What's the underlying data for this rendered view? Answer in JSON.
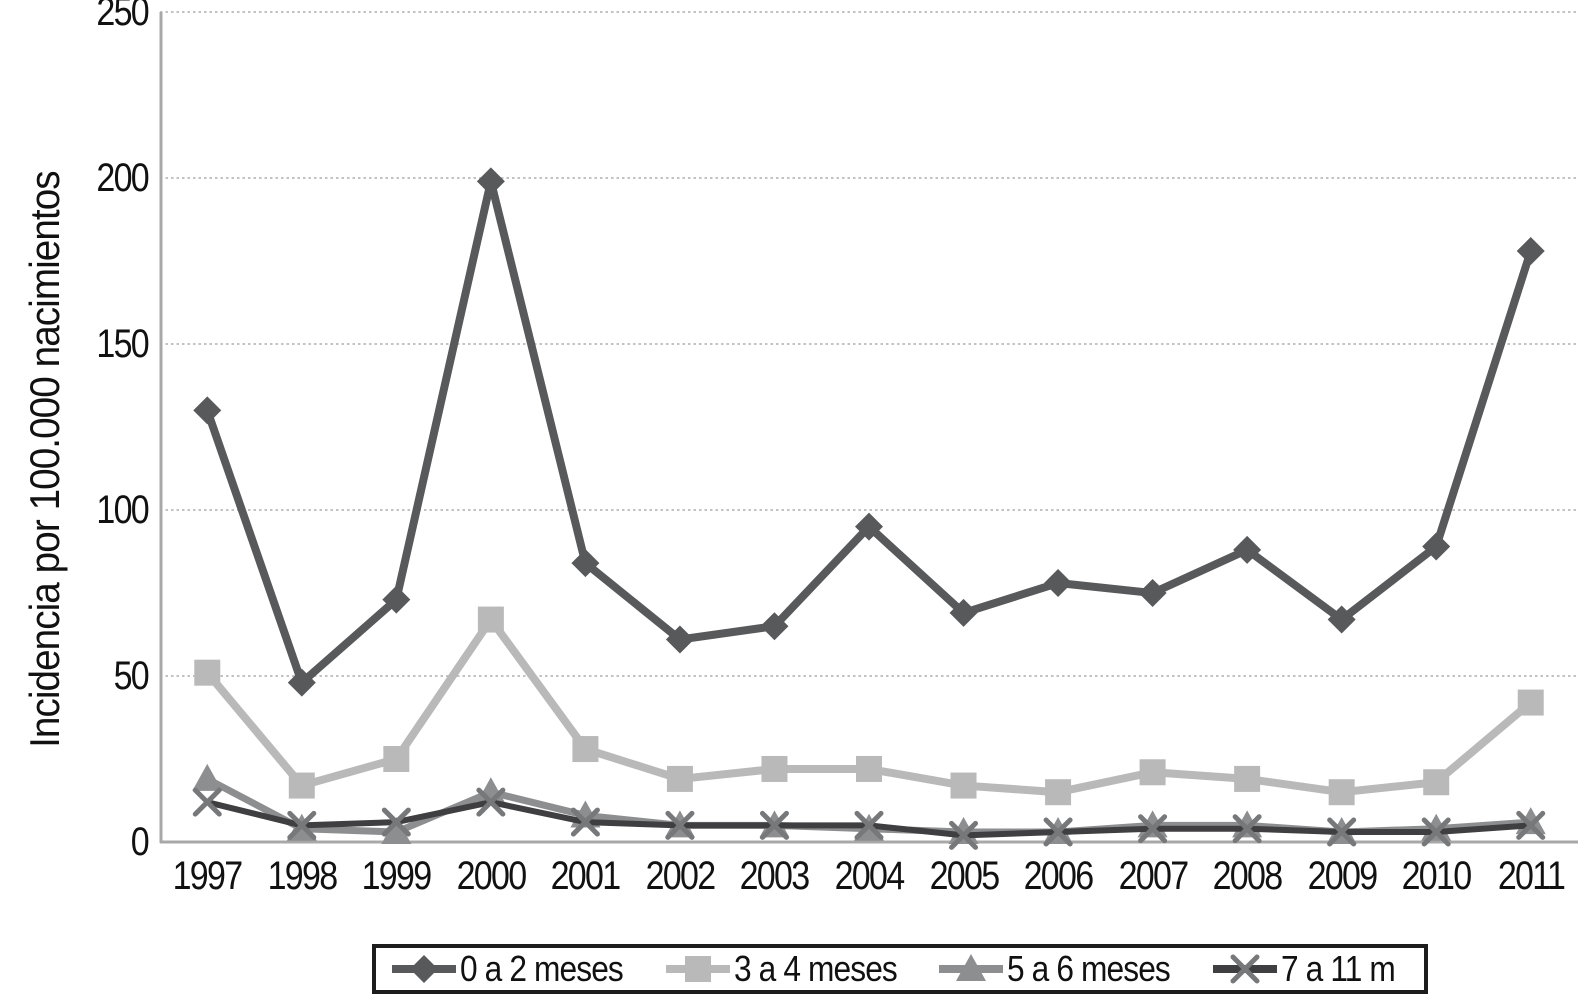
{
  "chart_data": {
    "type": "line",
    "title": "",
    "ylabel": "Incidencia por 100.000 nacimientos",
    "xlabel": "",
    "ylim": [
      0,
      250
    ],
    "y_ticks": [
      "0",
      "50",
      "100",
      "150",
      "200",
      "250"
    ],
    "grid": "horizontal dotted gridlines every 50",
    "legend_position": "bottom",
    "categories": [
      "1997",
      "1998",
      "1999",
      "2000",
      "2001",
      "2002",
      "2003",
      "2004",
      "2005",
      "2006",
      "2007",
      "2008",
      "2009",
      "2010",
      "2011"
    ],
    "series": [
      {
        "name": "0 a 2 meses",
        "marker": "diamond",
        "color": "#58595b",
        "line_width": 8,
        "values": [
          130,
          48,
          73,
          199,
          84,
          61,
          65,
          95,
          69,
          78,
          75,
          88,
          67,
          89,
          178
        ]
      },
      {
        "name": "3 a 4 meses",
        "marker": "square",
        "color": "#b9b9ba",
        "line_width": 8,
        "values": [
          51,
          17,
          25,
          67,
          28,
          19,
          22,
          22,
          17,
          15,
          21,
          19,
          15,
          18,
          42
        ]
      },
      {
        "name": "5 a 6 meses",
        "marker": "triangle",
        "color": "#8d8e90",
        "line_width": 7,
        "values": [
          19,
          4,
          3,
          15,
          8,
          5,
          5,
          4,
          3,
          3,
          5,
          5,
          3,
          4,
          6
        ]
      },
      {
        "name": "7 a 11 m",
        "marker": "x",
        "color": "#3f3f41",
        "marker_color": "#77787a",
        "line_width": 6,
        "values": [
          12,
          5,
          6,
          12,
          6,
          5,
          5,
          5,
          2,
          3,
          4,
          4,
          3,
          3,
          5
        ]
      }
    ],
    "axis_color": "#a8a8a8",
    "gridline_color": "#c2c2c2",
    "tick_label_color": "#111111",
    "legend_border_color": "#1c1c1c"
  }
}
